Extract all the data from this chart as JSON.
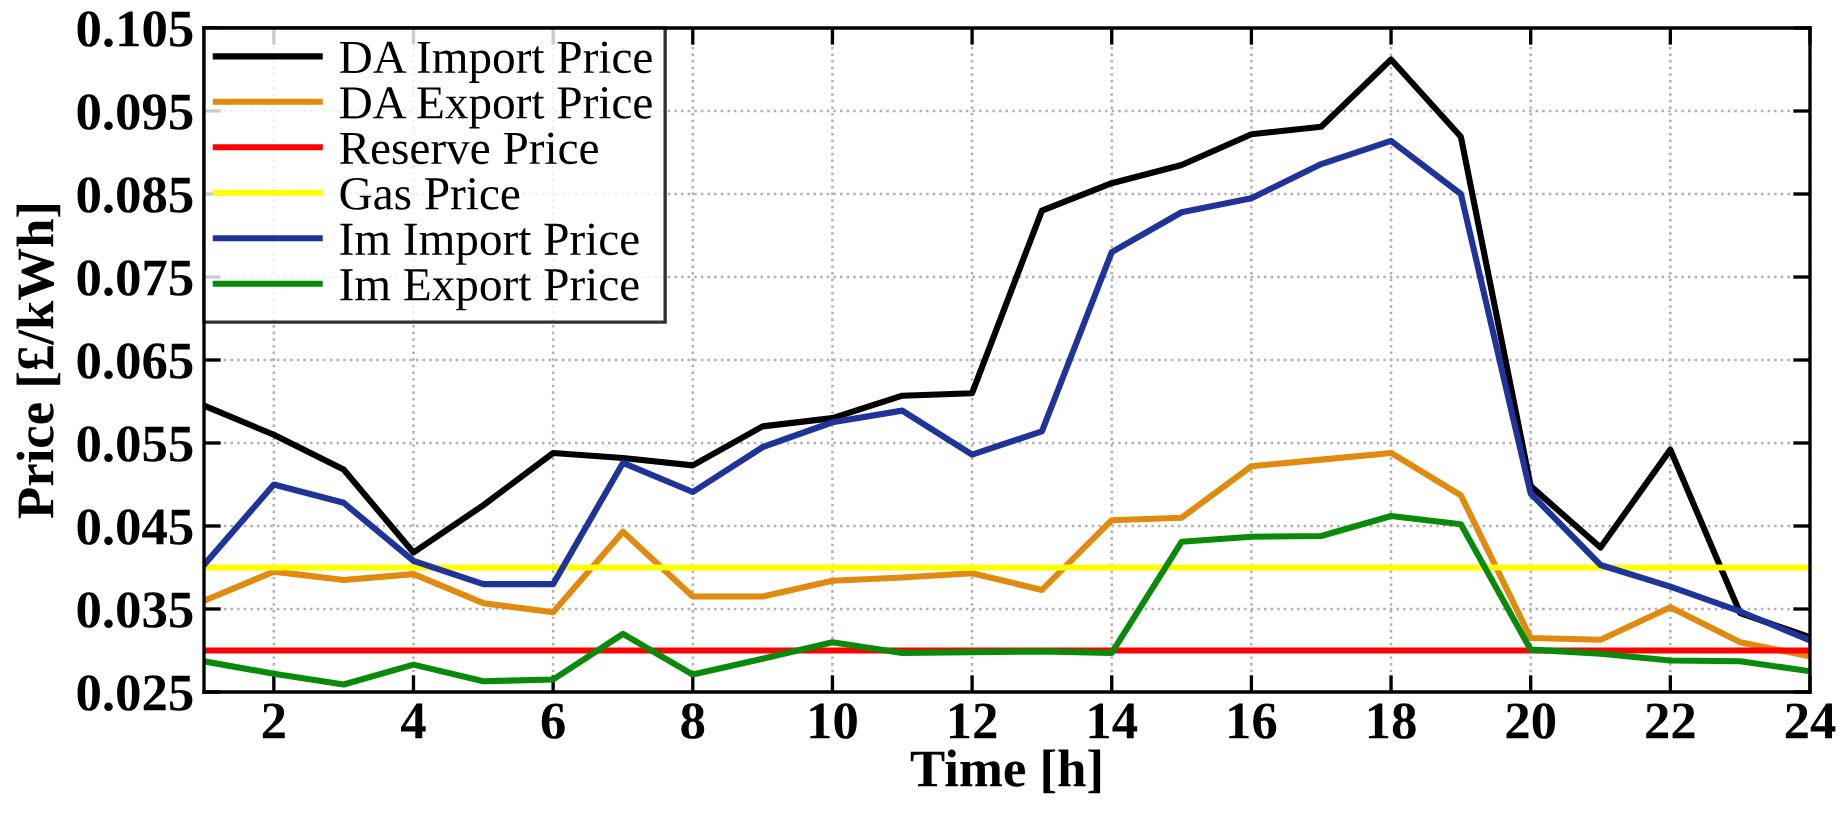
{
  "chart_data": {
    "type": "line",
    "xlabel": "Time [h]",
    "ylabel": "Price [£/kWh]",
    "x": [
      1,
      2,
      3,
      4,
      5,
      6,
      7,
      8,
      9,
      10,
      11,
      12,
      13,
      14,
      15,
      16,
      17,
      18,
      19,
      20,
      21,
      22,
      23,
      24
    ],
    "xlim": [
      1,
      24
    ],
    "xticks": [
      2,
      4,
      6,
      8,
      10,
      12,
      14,
      16,
      18,
      20,
      22,
      24
    ],
    "ylim": [
      0.025,
      0.105
    ],
    "yticks": [
      0.025,
      0.035,
      0.045,
      0.055,
      0.065,
      0.075,
      0.085,
      0.095,
      0.105
    ],
    "grid": true,
    "legend": "top left",
    "marker": "none",
    "line_style": "solid",
    "series": [
      {
        "name": "DA Import Price",
        "color": "#000000",
        "values": [
          0.0595,
          0.056,
          0.0518,
          0.0418,
          0.0475,
          0.0538,
          0.0532,
          0.0523,
          0.057,
          0.058,
          0.0607,
          0.061,
          0.083,
          0.0863,
          0.0885,
          0.0922,
          0.0931,
          0.1012,
          0.0919,
          0.0498,
          0.0424,
          0.0542,
          0.0345,
          0.0316
        ]
      },
      {
        "name": "DA Export Price",
        "color": "#e08a10",
        "values": [
          0.036,
          0.0395,
          0.0385,
          0.0392,
          0.0357,
          0.0346,
          0.0443,
          0.0365,
          0.0365,
          0.0384,
          0.0388,
          0.0393,
          0.0373,
          0.0457,
          0.046,
          0.0522,
          0.053,
          0.0538,
          0.0487,
          0.0315,
          0.0313,
          0.0352,
          0.031,
          0.0293
        ]
      },
      {
        "name": "Reserve Price",
        "color": "#ff0000",
        "values": [
          0.03,
          0.03,
          0.03,
          0.03,
          0.03,
          0.03,
          0.03,
          0.03,
          0.03,
          0.03,
          0.03,
          0.03,
          0.03,
          0.03,
          0.03,
          0.03,
          0.03,
          0.03,
          0.03,
          0.03,
          0.03,
          0.03,
          0.03,
          0.03
        ]
      },
      {
        "name": "Gas Price",
        "color": "#ffff00",
        "values": [
          0.04,
          0.04,
          0.04,
          0.04,
          0.04,
          0.04,
          0.04,
          0.04,
          0.04,
          0.04,
          0.04,
          0.04,
          0.04,
          0.04,
          0.04,
          0.04,
          0.04,
          0.04,
          0.04,
          0.04,
          0.04,
          0.04,
          0.04,
          0.04
        ]
      },
      {
        "name": "Im Import Price",
        "color": "#1f3399",
        "values": [
          0.0403,
          0.05,
          0.0478,
          0.0408,
          0.038,
          0.038,
          0.0526,
          0.0491,
          0.0545,
          0.0575,
          0.0589,
          0.0536,
          0.0564,
          0.078,
          0.0828,
          0.0845,
          0.0886,
          0.0914,
          0.085,
          0.0489,
          0.0403,
          0.0377,
          0.0347,
          0.0312
        ]
      },
      {
        "name": "Im Export Price",
        "color": "#0a8a0a",
        "values": [
          0.0287,
          0.0272,
          0.0259,
          0.0283,
          0.0263,
          0.0265,
          0.032,
          0.0271,
          0.029,
          0.031,
          0.0297,
          0.0298,
          0.0299,
          0.0297,
          0.0431,
          0.0437,
          0.0438,
          0.0462,
          0.0452,
          0.0301,
          0.0296,
          0.0288,
          0.0287,
          0.0275
        ]
      }
    ]
  }
}
